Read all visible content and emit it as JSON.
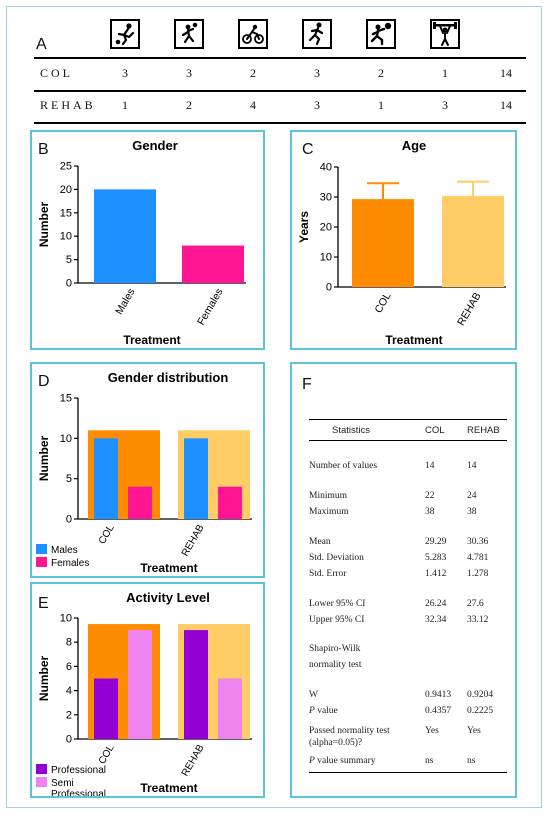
{
  "panel_a": {
    "letter": "A",
    "icons": [
      "soccer-icon",
      "handball-icon",
      "cycling-icon",
      "running-icon",
      "volleyball-icon",
      "weightlifting-icon"
    ],
    "rows": [
      {
        "label": "COL",
        "values": [
          "3",
          "3",
          "2",
          "3",
          "2",
          "1",
          "14"
        ]
      },
      {
        "label": "REHAB",
        "values": [
          "1",
          "2",
          "4",
          "3",
          "1",
          "3",
          "14"
        ]
      }
    ]
  },
  "panel_b": {
    "letter": "B"
  },
  "panel_c": {
    "letter": "C"
  },
  "panel_d": {
    "letter": "D"
  },
  "panel_e": {
    "letter": "E"
  },
  "panel_f": {
    "letter": "F",
    "headers": [
      "Statistics",
      "COL",
      "REHAB"
    ],
    "rows": [
      {
        "label": "Number of values",
        "col": "14",
        "rehab": "14"
      },
      {
        "label": "Minimum",
        "col": "22",
        "rehab": "24"
      },
      {
        "label": "Maximum",
        "col": "38",
        "rehab": "38"
      },
      {
        "label": "Mean",
        "col": "29.29",
        "rehab": "30.36"
      },
      {
        "label": "Std. Deviation",
        "col": "5.283",
        "rehab": "4.781"
      },
      {
        "label": "Std. Error",
        "col": "1.412",
        "rehab": "1.278"
      },
      {
        "label": "Lower 95% CI",
        "col": "26.24",
        "rehab": "27.6"
      },
      {
        "label": "Upper 95% CI",
        "col": "32.34",
        "rehab": "33.12"
      },
      {
        "label": "Shapiro-Wilk",
        "col": "",
        "rehab": ""
      },
      {
        "label": "normality test",
        "col": "",
        "rehab": ""
      },
      {
        "label": "W",
        "col": "0.9413",
        "rehab": "0.9204"
      },
      {
        "label": "P value",
        "col": "0.4357",
        "rehab": "0.2225"
      },
      {
        "label": "Passed normality test",
        "col": "Yes",
        "rehab": "Yes"
      },
      {
        "label": "(alpha=0.05)?",
        "col": "",
        "rehab": ""
      },
      {
        "label": "P value summary",
        "col": "ns",
        "rehab": "ns"
      }
    ]
  },
  "colors": {
    "blue": "#1e90ff",
    "pink": "#ff1493",
    "orange": "#ff8c00",
    "lightorange": "#ffcc66",
    "purple": "#9400d3",
    "violet": "#ee82ee",
    "border": "#5cc4d6"
  },
  "chart_data": [
    {
      "type": "bar",
      "title": "Gender",
      "xlabel": "Treatment",
      "ylabel": "Number",
      "categories": [
        "Males",
        "Females"
      ],
      "values": [
        20,
        8
      ],
      "ylim": [
        0,
        25
      ],
      "yticks": [
        "0",
        "5",
        "10",
        "15",
        "20",
        "25"
      ]
    },
    {
      "type": "bar",
      "title": "Age",
      "xlabel": "Treatment",
      "ylabel": "Years",
      "categories": [
        "COL",
        "REHAB"
      ],
      "values": [
        29.29,
        30.36
      ],
      "errors": [
        5.283,
        4.781
      ],
      "ylim": [
        0,
        40
      ],
      "yticks": [
        "0",
        "10",
        "20",
        "30",
        "40"
      ]
    },
    {
      "type": "bar",
      "title": "Gender distribution",
      "xlabel": "Treatment",
      "ylabel": "Number",
      "categories": [
        "COL",
        "REHAB"
      ],
      "group_totals": [
        11,
        11
      ],
      "series": [
        {
          "name": "Males",
          "values": [
            10,
            10
          ]
        },
        {
          "name": "Females",
          "values": [
            4,
            4
          ]
        }
      ],
      "ylim": [
        0,
        15
      ],
      "yticks": [
        "0",
        "5",
        "10",
        "15"
      ],
      "legend": "bottom-left"
    },
    {
      "type": "bar",
      "title": "Activity Level",
      "xlabel": "Treatment",
      "ylabel": "Number",
      "categories": [
        "COL",
        "REHAB"
      ],
      "group_totals": [
        9.5,
        9.5
      ],
      "series": [
        {
          "name": "Professional",
          "values": [
            5,
            9
          ]
        },
        {
          "name": "Semi Professional",
          "values": [
            9,
            5
          ]
        }
      ],
      "ylim": [
        0,
        10
      ],
      "yticks": [
        "0",
        "2",
        "4",
        "6",
        "8",
        "10"
      ],
      "legend": "bottom-left"
    }
  ]
}
